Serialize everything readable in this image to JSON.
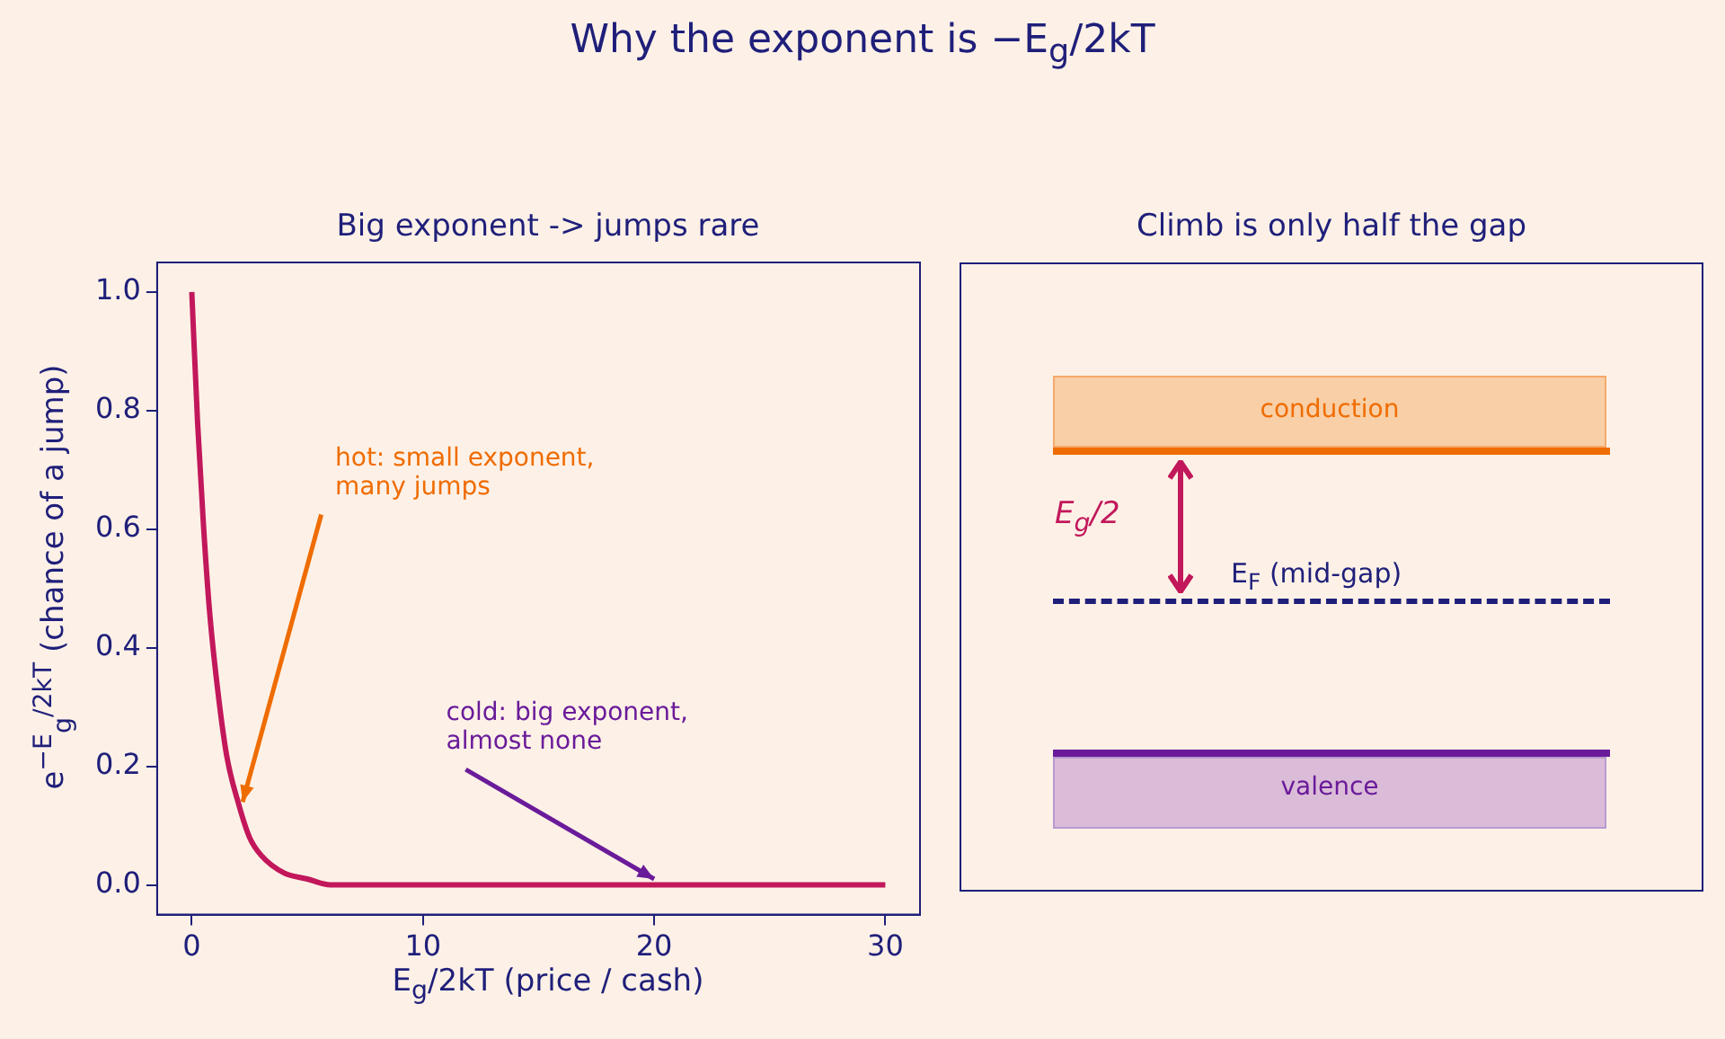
{
  "chart_data": [
    {
      "type": "line",
      "title": "Why the exponent is  −E$_{g}$/2kT",
      "subtitle": "Big exponent -> jumps rare",
      "xlabel": "E$_{g}$/2kT  (price / cash)",
      "ylabel": "e$^{−E}$$_{g}$$^{/2kT}$  (chance of a jump)",
      "series": [
        {
          "color": "#c2185b",
          "x": [
            0,
            0.25,
            0.5,
            0.75,
            1,
            1.5,
            2,
            2.5,
            3,
            4,
            5,
            6,
            8,
            10,
            15,
            20,
            25,
            30
          ],
          "values": [
            1,
            0.78,
            0.61,
            0.47,
            0.37,
            0.22,
            0.14,
            0.08,
            0.05,
            0.02,
            0.01,
            0,
            0,
            0,
            0,
            0,
            0,
            0
          ]
        }
      ],
      "xlim": [
        -1.5,
        31.5
      ],
      "xticks": [
        0,
        10,
        20,
        30
      ],
      "ylim": [
        -0.05,
        1.05
      ],
      "yticks": [
        {
          "value": 0,
          "label": "0.0"
        },
        0.2,
        0.4,
        0.6,
        0.8,
        {
          "value": 1,
          "label": "1.0"
        }
      ],
      "grid": false,
      "legend": false,
      "marker": "none",
      "line_style": "solid",
      "annotations": [
        {
          "text": "hot: small exponent,\nmany jumps",
          "x": 2.2,
          "y": 0.14
        },
        {
          "text": "cold: big exponent,\nalmost none",
          "x": 20,
          "y": 0.01
        }
      ]
    },
    {
      "type": "other",
      "title": "Climb is only half the gap",
      "annotations": [
        "conduction",
        "E$_{g}$/2",
        "E$_{F}$ (mid-gap)",
        "valence"
      ]
    }
  ]
}
